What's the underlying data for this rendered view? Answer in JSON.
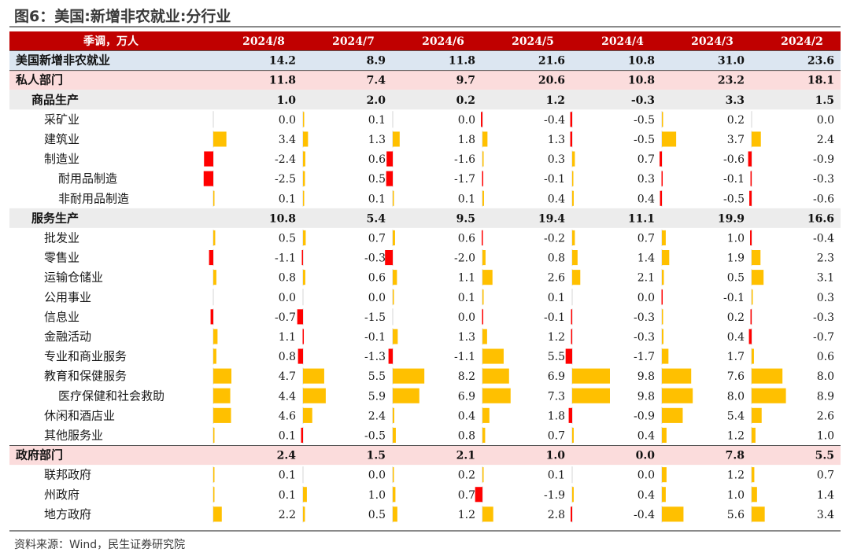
{
  "title": "图6：美国:新增非农就业:分行业",
  "source": "资料来源：Wind，民生证券研究院",
  "colors": {
    "header_bg": "#c00000",
    "total_row_bg": "#dce6f1",
    "sector_row_bg": "#fbdcdc",
    "group_row_bg": "#ececec",
    "positive_bar": "#ffc000",
    "negative_bar": "#ff0000"
  },
  "chart_data": {
    "type": "table",
    "header_label": "季调，万人",
    "columns": [
      "2024/8",
      "2024/7",
      "2024/6",
      "2024/5",
      "2024/4",
      "2024/3",
      "2024/2"
    ],
    "bar_scale_max": 9.8,
    "rows": [
      {
        "label": "美国新增非农就业",
        "level": 0,
        "style": "total",
        "values": [
          14.2,
          8.9,
          11.8,
          21.6,
          10.8,
          31.0,
          23.6
        ]
      },
      {
        "label": "私人部门",
        "level": 0,
        "style": "sector",
        "values": [
          11.8,
          7.4,
          9.7,
          20.6,
          10.8,
          23.2,
          18.1
        ]
      },
      {
        "label": "商品生产",
        "level": 1,
        "style": "group",
        "values": [
          1.0,
          2.0,
          0.2,
          1.2,
          -0.3,
          3.3,
          1.5
        ]
      },
      {
        "label": "采矿业",
        "level": 2,
        "style": "bar",
        "values": [
          0.0,
          0.1,
          0.0,
          -0.4,
          -0.5,
          0.2,
          0.0
        ]
      },
      {
        "label": "建筑业",
        "level": 2,
        "style": "bar",
        "values": [
          3.4,
          1.3,
          1.8,
          1.3,
          -0.5,
          3.7,
          2.4
        ]
      },
      {
        "label": "制造业",
        "level": 2,
        "style": "bar",
        "values": [
          -2.4,
          0.6,
          -1.6,
          0.3,
          0.7,
          -0.6,
          -0.9
        ]
      },
      {
        "label": "耐用品制造",
        "level": 3,
        "style": "bar",
        "values": [
          -2.5,
          0.5,
          -1.7,
          -0.1,
          0.3,
          -0.1,
          -0.3
        ]
      },
      {
        "label": "非耐用品制造",
        "level": 3,
        "style": "bar",
        "values": [
          0.1,
          0.1,
          0.1,
          0.4,
          0.4,
          -0.5,
          -0.6
        ]
      },
      {
        "label": "服务生产",
        "level": 1,
        "style": "group",
        "values": [
          10.8,
          5.4,
          9.5,
          19.4,
          11.1,
          19.9,
          16.6
        ]
      },
      {
        "label": "批发业",
        "level": 2,
        "style": "bar",
        "values": [
          0.5,
          0.7,
          0.6,
          -0.2,
          0.7,
          1.0,
          -0.4
        ]
      },
      {
        "label": "零售业",
        "level": 2,
        "style": "bar",
        "values": [
          -1.1,
          -0.3,
          -2.0,
          0.8,
          1.4,
          1.9,
          2.3
        ]
      },
      {
        "label": "运输仓储业",
        "level": 2,
        "style": "bar",
        "values": [
          0.8,
          0.6,
          1.1,
          2.6,
          2.1,
          0.5,
          3.1
        ]
      },
      {
        "label": "公用事业",
        "level": 2,
        "style": "bar",
        "values": [
          0.0,
          0.0,
          0.1,
          0.1,
          0.0,
          -0.1,
          0.3
        ]
      },
      {
        "label": "信息业",
        "level": 2,
        "style": "bar",
        "values": [
          -0.7,
          -1.5,
          0.0,
          -0.1,
          -0.3,
          0.2,
          -0.3
        ]
      },
      {
        "label": "金融活动",
        "level": 2,
        "style": "bar",
        "values": [
          1.1,
          -0.1,
          1.3,
          1.2,
          -0.3,
          0.4,
          -0.7
        ]
      },
      {
        "label": "专业和商业服务",
        "level": 2,
        "style": "bar",
        "values": [
          0.8,
          -1.3,
          -1.1,
          5.5,
          -1.7,
          1.7,
          0.6
        ]
      },
      {
        "label": "教育和保健服务",
        "level": 2,
        "style": "bar",
        "values": [
          4.7,
          5.5,
          8.2,
          6.9,
          9.8,
          7.6,
          8.0
        ]
      },
      {
        "label": "医疗保健和社会救助",
        "level": 3,
        "style": "bar",
        "values": [
          4.4,
          5.9,
          6.9,
          7.3,
          9.8,
          8.0,
          8.9
        ]
      },
      {
        "label": "休闲和酒店业",
        "level": 2,
        "style": "bar",
        "values": [
          4.6,
          2.4,
          0.4,
          1.8,
          -0.9,
          5.4,
          2.6
        ]
      },
      {
        "label": "其他服务业",
        "level": 2,
        "style": "bar",
        "values": [
          0.1,
          -0.5,
          0.8,
          0.7,
          0.4,
          1.2,
          1.0
        ]
      },
      {
        "label": "政府部门",
        "level": 0,
        "style": "sector",
        "values": [
          2.4,
          1.5,
          2.1,
          1.0,
          0.0,
          7.8,
          5.5
        ]
      },
      {
        "label": "联邦政府",
        "level": 2,
        "style": "bar",
        "values": [
          0.1,
          0.0,
          0.2,
          0.1,
          0.0,
          1.2,
          0.7
        ]
      },
      {
        "label": "州政府",
        "level": 2,
        "style": "bar",
        "values": [
          0.1,
          1.0,
          0.7,
          -1.9,
          0.4,
          1.0,
          1.4
        ]
      },
      {
        "label": "地方政府",
        "level": 2,
        "style": "bar",
        "values": [
          2.2,
          0.5,
          1.2,
          2.8,
          -0.4,
          5.6,
          3.4
        ]
      }
    ]
  }
}
